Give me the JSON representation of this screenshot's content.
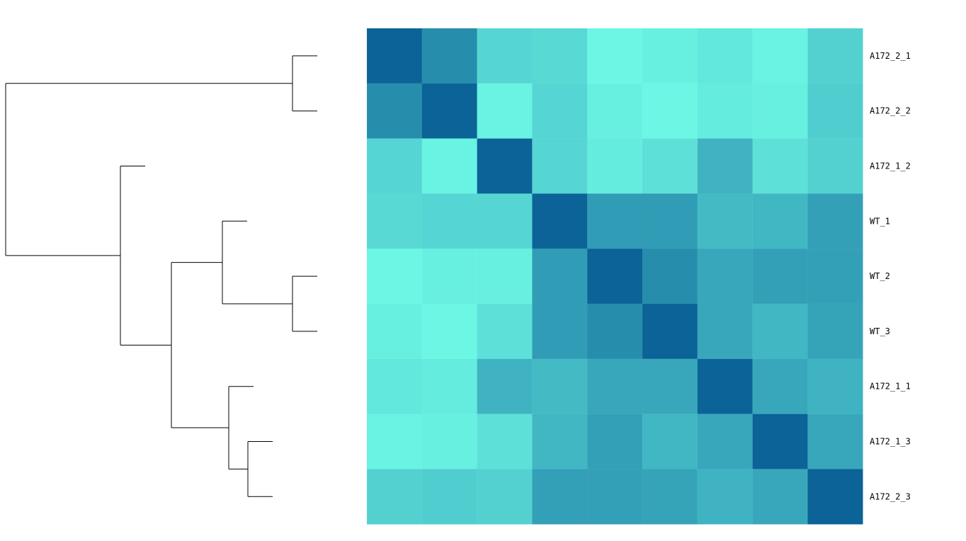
{
  "chart_data": {
    "type": "heatmap",
    "title": "",
    "xlabel": "",
    "ylabel": "",
    "row_labels": [
      "A172_2_1",
      "A172_2_2",
      "A172_1_2",
      "WT_1",
      "WT_2",
      "WT_3",
      "A172_1_1",
      "A172_1_3",
      "A172_2_3"
    ],
    "column_labels": [],
    "colorscale": {
      "low": "#6efbe6",
      "high": "#0b6398"
    },
    "value_range": [
      0.6,
      1.0
    ],
    "values": [
      [
        1.0,
        0.89,
        0.7,
        0.69,
        0.61,
        0.63,
        0.65,
        0.62,
        0.71
      ],
      [
        0.89,
        1.0,
        0.62,
        0.7,
        0.63,
        0.61,
        0.64,
        0.63,
        0.72
      ],
      [
        0.7,
        0.62,
        1.0,
        0.7,
        0.64,
        0.67,
        0.79,
        0.67,
        0.71
      ],
      [
        0.69,
        0.7,
        0.7,
        1.0,
        0.85,
        0.85,
        0.77,
        0.78,
        0.84
      ],
      [
        0.61,
        0.63,
        0.63,
        0.85,
        1.0,
        0.89,
        0.82,
        0.84,
        0.84
      ],
      [
        0.63,
        0.61,
        0.67,
        0.85,
        0.89,
        1.0,
        0.82,
        0.78,
        0.83
      ],
      [
        0.65,
        0.64,
        0.79,
        0.77,
        0.82,
        0.82,
        1.0,
        0.82,
        0.79
      ],
      [
        0.62,
        0.63,
        0.67,
        0.78,
        0.84,
        0.78,
        0.82,
        1.0,
        0.82
      ],
      [
        0.71,
        0.72,
        0.71,
        0.84,
        0.84,
        0.83,
        0.79,
        0.82,
        1.0
      ]
    ],
    "dendrogram": {
      "orientation": "left",
      "leaves": [
        "A172_2_1",
        "A172_2_2",
        "A172_1_2",
        "WT_1",
        "WT_2",
        "WT_3",
        "A172_1_1",
        "A172_1_3",
        "A172_2_3"
      ],
      "merges": [
        {
          "a": "A172_2_1",
          "b": "A172_2_2",
          "height": 0.11
        },
        {
          "a": "WT_2",
          "b": "WT_3",
          "height": 0.11
        },
        {
          "a": "A172_1_3",
          "b": "A172_2_3",
          "height": 0.18
        },
        {
          "a": "WT_1",
          "b": "m1",
          "height": 0.22
        },
        {
          "a": "A172_1_1",
          "b": "m2",
          "height": 0.21
        },
        {
          "a": "m3",
          "b": "m4",
          "height": 0.3
        },
        {
          "a": "A172_1_2",
          "b": "m5",
          "height": 0.38
        },
        {
          "a": "m0",
          "b": "m6",
          "height": 0.56
        }
      ]
    },
    "grid": false,
    "legend": "none"
  }
}
